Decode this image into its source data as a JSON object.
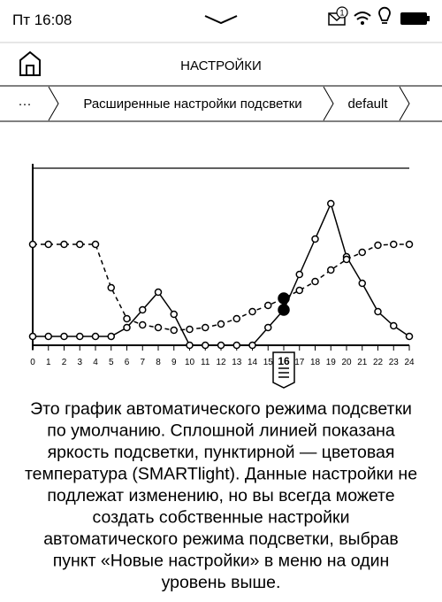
{
  "status_bar": {
    "time": "Пт 16:08",
    "notifications": "1"
  },
  "header": {
    "title": "НАСТРОЙКИ"
  },
  "breadcrumb": {
    "items": [
      "···",
      "Расширенные настройки подсветки",
      "default"
    ]
  },
  "chart": {
    "type": "line",
    "x": [
      0,
      1,
      2,
      3,
      4,
      5,
      6,
      7,
      8,
      9,
      10,
      11,
      12,
      13,
      14,
      15,
      16,
      17,
      18,
      19,
      20,
      21,
      22,
      23,
      24
    ],
    "xlim": [
      0,
      24
    ],
    "ylim": [
      0,
      100
    ],
    "selected": 16,
    "series": [
      {
        "color": "#000000",
        "dash": false,
        "values": [
          5,
          5,
          5,
          5,
          5,
          5,
          10,
          20,
          30,
          17.5,
          0,
          0,
          0,
          0,
          0,
          10,
          20,
          40,
          60,
          80,
          50,
          35,
          19,
          11,
          5
        ]
      },
      {
        "color": "#000000",
        "dash": true,
        "values": [
          57,
          57,
          57,
          57,
          57,
          32.5,
          15,
          11.5,
          10,
          8.5,
          9,
          10,
          12,
          15,
          19,
          22.5,
          26.5,
          31,
          36,
          42.5,
          48.5,
          52.5,
          56.5,
          57,
          57
        ]
      }
    ]
  },
  "description": {
    "lines": [
      "Это график автоматического режима подсветки",
      "по умолчанию. Сплошной линией показана",
      "яркость подсветки, пунктирной — цветовая",
      "температура (SMARTlight). Данные настройки не",
      "подлежат изменению, но вы всегда можете",
      "создать собственные настройки",
      "автоматического режима подсветки, выбрав",
      "пункт «Новые настройки» в меню на один",
      "уровень выше."
    ]
  }
}
